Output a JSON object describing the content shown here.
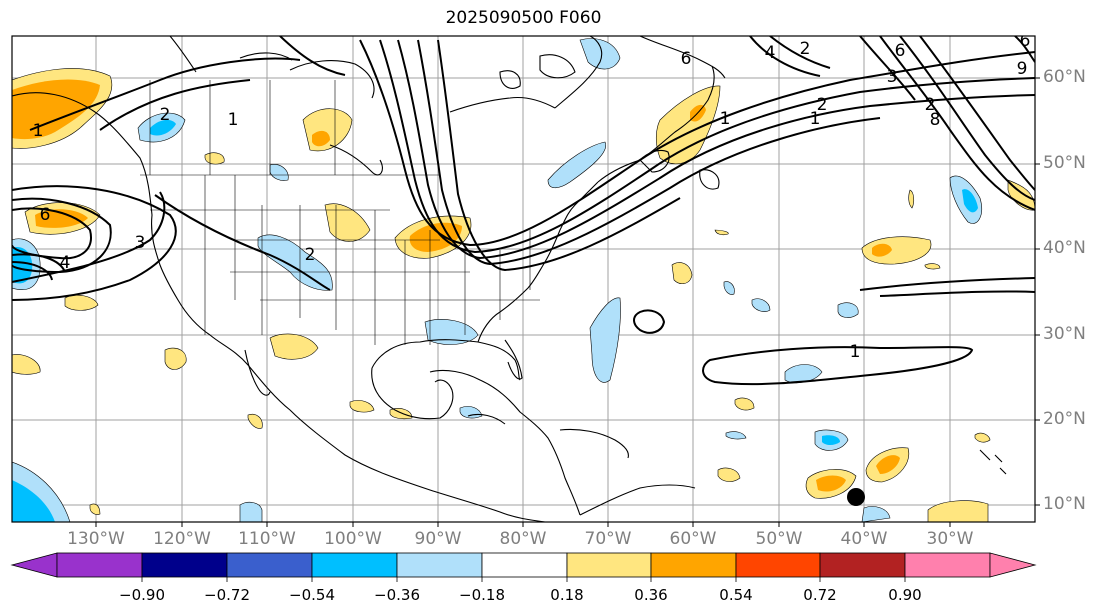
{
  "title": "2025090500 F060",
  "lat_labels": [
    "60°N",
    "50°N",
    "40°N",
    "30°N",
    "20°N",
    "10°N"
  ],
  "lon_labels": [
    "130°W",
    "120°W",
    "110°W",
    "100°W",
    "90°W",
    "80°W",
    "70°W",
    "60°W",
    "50°W",
    "40°W",
    "30°W"
  ],
  "contour_labels": [
    "1",
    "2",
    "1",
    "6",
    "3",
    "4",
    "2",
    "6",
    "2",
    "4",
    "3",
    "2",
    "6",
    "9",
    "6",
    "8",
    "1",
    "2",
    "1",
    "1"
  ],
  "colorbar": {
    "ticks": [
      "−0.90",
      "−0.72",
      "−0.54",
      "−0.36",
      "−0.18",
      "0.18",
      "0.36",
      "0.54",
      "0.72",
      "0.90"
    ],
    "colors": [
      "#9932cc",
      "#00008b",
      "#3a5fcd",
      "#00bfff",
      "#b0e0fa",
      "#ffffff",
      "#ffe680",
      "#ffa500",
      "#ff4500",
      "#b22222",
      "#ff80ad"
    ]
  },
  "colors": {
    "land_outline": "#000000",
    "grid": "#a0a0a0",
    "contour": "#000000",
    "shade_light_orange": "#ffe680",
    "shade_orange": "#ffa500",
    "shade_light_blue": "#b0e0fa",
    "shade_blue": "#00bfff"
  },
  "marker": "storm-center-dot"
}
